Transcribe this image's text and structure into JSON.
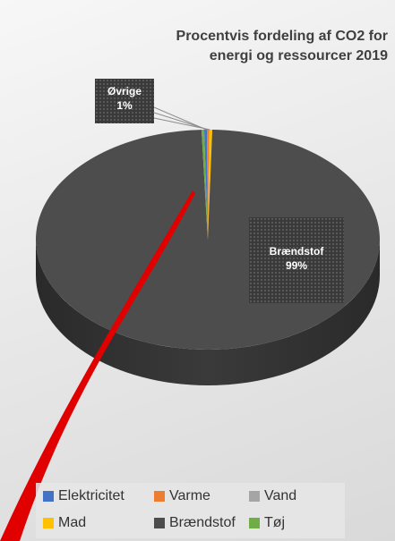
{
  "chart_data": {
    "type": "pie",
    "title_lines": [
      "Procentvis fordeling af CO2 for",
      "energi og ressourcer 2019"
    ],
    "categories": [
      "Elektricitet",
      "Varme",
      "Vand",
      "Mad",
      "Brændstof",
      "Tøj"
    ],
    "values": [
      0.25,
      0.2,
      0.05,
      0.25,
      99,
      0.25
    ],
    "colors": [
      "#4472c4",
      "#ed7d31",
      "#a5a5a5",
      "#ffc000",
      "#4d4d4d",
      "#70ad47"
    ],
    "data_labels": {
      "ovrige": {
        "name": "Øvrige",
        "value": "1%"
      },
      "braendstof": {
        "name": "Brændstof",
        "value": "99%"
      }
    },
    "legend_position": "bottom",
    "style": "3d-pie"
  }
}
